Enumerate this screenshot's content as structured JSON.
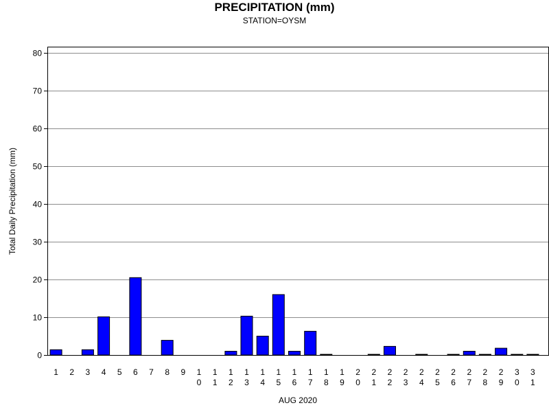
{
  "chart_data": {
    "type": "bar",
    "title": "PRECIPITATION (mm)",
    "subtitle": "STATION=OYSM",
    "xlabel": "AUG 2020",
    "ylabel": "Total Daily Precipitation (mm)",
    "ylim": [
      0,
      80
    ],
    "yticks": [
      0,
      10,
      20,
      30,
      40,
      50,
      60,
      70,
      80
    ],
    "grid": true,
    "bar_color": "#0000ff",
    "categories": [
      "1",
      "2",
      "3",
      "4",
      "5",
      "6",
      "7",
      "8",
      "9",
      "10",
      "11",
      "12",
      "13",
      "14",
      "15",
      "16",
      "17",
      "18",
      "19",
      "20",
      "21",
      "22",
      "23",
      "24",
      "25",
      "26",
      "27",
      "28",
      "29",
      "30",
      "31"
    ],
    "values": [
      1.4,
      0,
      1.4,
      10.1,
      0,
      20.5,
      0,
      3.9,
      0,
      0,
      0,
      1.0,
      10.3,
      5.0,
      16.0,
      1.0,
      6.3,
      0.1,
      0,
      0,
      0.1,
      2.3,
      0,
      0.1,
      0,
      0.1,
      1.0,
      0.1,
      1.8,
      0.1,
      0.1
    ]
  }
}
